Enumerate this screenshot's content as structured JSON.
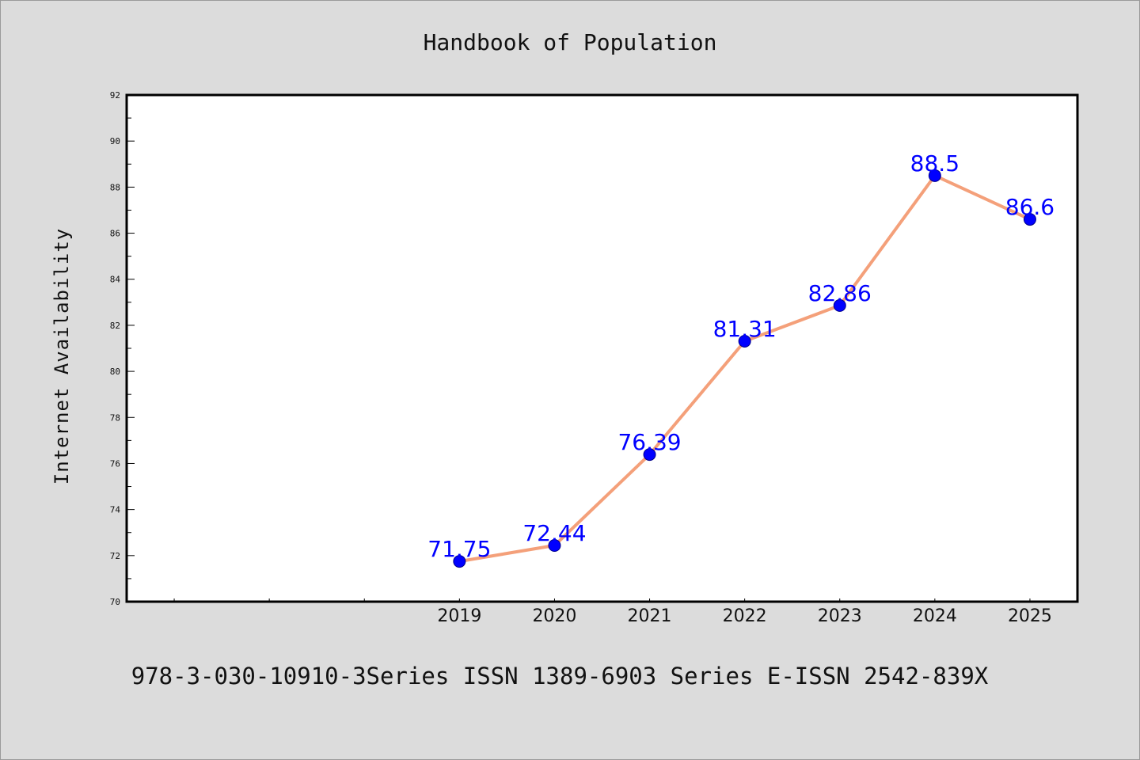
{
  "chart_data": {
    "type": "line",
    "title": "Handbook of Population",
    "ylabel": "Internet Availability",
    "xlabel": "",
    "x": [
      2019,
      2020,
      2021,
      2022,
      2023,
      2024,
      2025
    ],
    "x_tick_labels": [
      "2019",
      "2020",
      "2021",
      "2022",
      "2023",
      "2024",
      "2025"
    ],
    "xlim": [
      2015.5,
      2025.5
    ],
    "series": [
      {
        "values": [
          71.75,
          72.44,
          76.39,
          81.31,
          82.86,
          88.5,
          86.6
        ]
      }
    ],
    "data_labels": [
      "71.75",
      "72.44",
      "76.39",
      "81.31",
      "82.86",
      "88.5",
      "86.6"
    ],
    "ylim": [
      70,
      92
    ],
    "y_ticks": [
      "70",
      "72",
      "74",
      "76",
      "78",
      "80",
      "82",
      "84",
      "86",
      "88",
      "90",
      "92"
    ],
    "grid": false,
    "footer": "978-3-030-10910-3Series ISSN 1389-6903 Series E-ISSN 2542-839X",
    "colors": {
      "line": "#f4a07a",
      "marker": "#0000ff",
      "data_label": "#0000ff",
      "plot_bg": "#ffffff",
      "page_bg": "#dcdcdc"
    }
  }
}
